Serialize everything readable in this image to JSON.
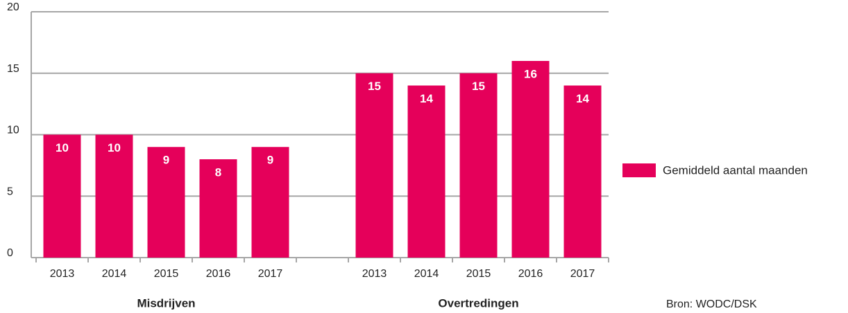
{
  "chart_data": {
    "type": "bar",
    "categories": [
      "2013",
      "2014",
      "2015",
      "2016",
      "2017",
      null,
      "2013",
      "2014",
      "2015",
      "2016",
      "2017"
    ],
    "groups": [
      "Misdrijven",
      "Overtredingen"
    ],
    "series": [
      {
        "name": "Gemiddeld aantal maanden",
        "color": "#e5005a",
        "values": [
          10,
          10,
          9,
          8,
          9,
          null,
          15,
          14,
          15,
          16,
          14
        ]
      }
    ],
    "ylim": [
      0,
      20
    ],
    "yticks": [
      0,
      5,
      10,
      15,
      20
    ],
    "grid": true,
    "legend": "right",
    "source": "Bron:  WODC/DSK"
  }
}
